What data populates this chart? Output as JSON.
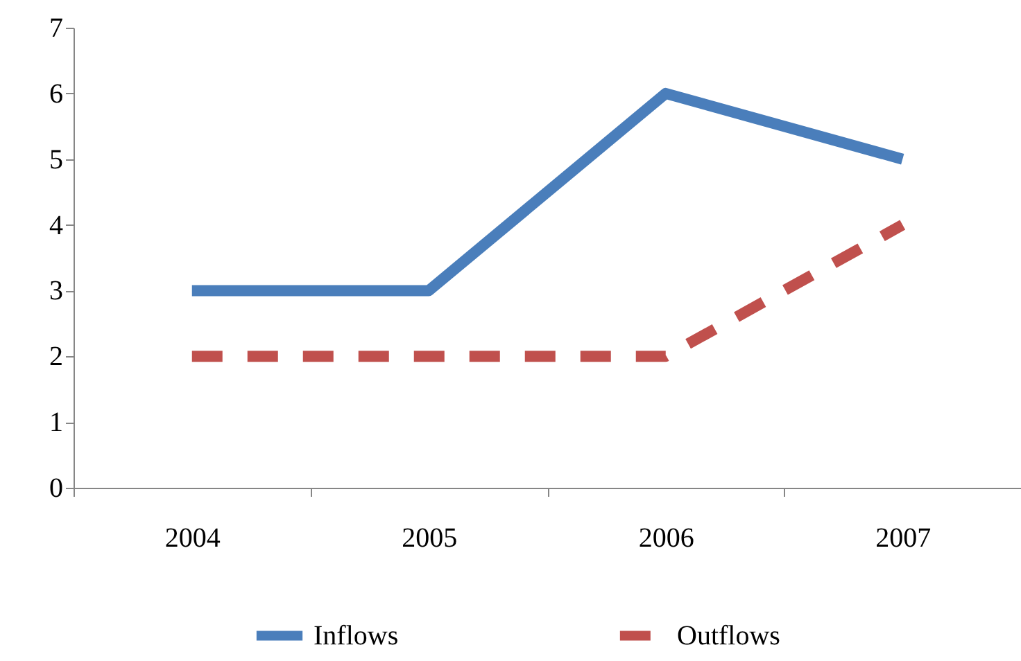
{
  "chart_data": {
    "type": "line",
    "categories": [
      "2004",
      "2005",
      "2006",
      "2007"
    ],
    "series": [
      {
        "name": "Inflows",
        "color": "#4a7ebb",
        "values": [
          3,
          3,
          6,
          5
        ],
        "line_style": "solid"
      },
      {
        "name": "Outflows",
        "color": "#c0504d",
        "values": [
          2,
          2,
          2,
          4
        ],
        "line_style": "dashed"
      }
    ],
    "ylim": [
      0,
      7
    ],
    "yticks": [
      0,
      1,
      2,
      3,
      4,
      5,
      6,
      7
    ],
    "legend": "bottom"
  }
}
